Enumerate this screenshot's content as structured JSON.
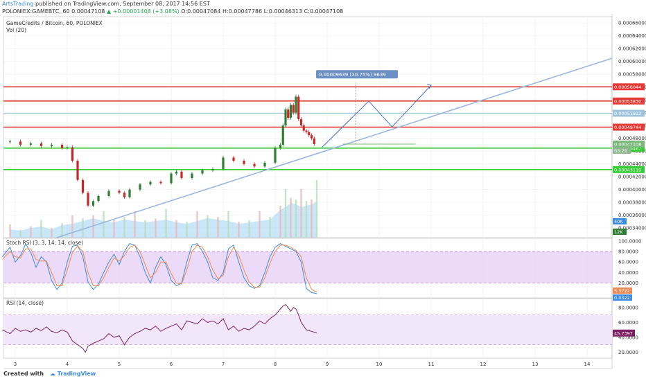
{
  "header": {
    "author": "ArtsTrading",
    "published_text": "published on TradingView.com, September 08, 2017 14:56 EST",
    "symbol_line_start": "POLONIEX:GAMEBTC, 60  0.00047108 ",
    "up_arrow": "▲",
    "change": "+0.00001408 (+3.08%)",
    "ohlc": "O:0.00047084  H:0.00047786  L:0.00046313  C:0.00047108"
  },
  "footer": {
    "created_with": "Created with",
    "logo": "TradingView",
    "cloud_icon": "cloud-icon"
  },
  "colors": {
    "red_level": "#e53935",
    "green_level": "#33cc33",
    "trend": "#9ab6e0",
    "candle_up": "#2e7d32",
    "candle_down": "#c62828",
    "stoch_k": "#3d8be0",
    "stoch_d": "#f08a50",
    "rsi": "#7b1f62",
    "band_fill": "#e6d2f8",
    "volume": "#9fd3f5"
  },
  "chart_data": [
    {
      "type": "candlestick",
      "title": "GameCredits / Bitcoin, 60, POLONIEX",
      "volume_label": "Vol (20)",
      "x_ticks": [
        "3",
        "4",
        "5",
        "6",
        "7",
        "8",
        "9",
        "10",
        "11",
        "12",
        "13",
        "14"
      ],
      "y_ticks": [
        "0.00066000",
        "0.00064000",
        "0.00062000",
        "0.00060000",
        "0.00058000",
        "0.00056000",
        "0.00054000",
        "0.00052000",
        "0.00050000",
        "0.00048000",
        "0.00046000",
        "0.00044000",
        "0.00042000",
        "0.00040000",
        "0.00038000",
        "0.00036000",
        "0.00034000"
      ],
      "ylim": [
        0.000325,
        0.00067
      ],
      "levels": [
        {
          "value": 0.00056044,
          "label": "0.00056044",
          "kind": "resistance"
        },
        {
          "value": 0.0005383,
          "label": "0.00053830",
          "kind": "resistance"
        },
        {
          "value": 0.00051912,
          "label": "0.00051912",
          "kind": "info"
        },
        {
          "value": 0.00049744,
          "label": "0.00049744",
          "kind": "resistance"
        },
        {
          "value": 0.00046467,
          "label": "0.00046467",
          "kind": "support"
        },
        {
          "value": 0.00043119,
          "label": "0.00043119",
          "kind": "support"
        }
      ],
      "last_price_label": "0.00047108",
      "last_price": 0.00047108,
      "countdown_label": "03:25",
      "measure_label": "0.00009639 (20.75%) 9639",
      "volume_axis_labels": [
        "40K",
        "12K"
      ],
      "series": [
        {
          "x": [
            2.9,
            3.1,
            3.3,
            3.5,
            3.7,
            3.9,
            4.0,
            4.1,
            4.2,
            4.3,
            4.4,
            4.5,
            4.6,
            4.8,
            5.0,
            5.1,
            5.2,
            5.4,
            5.6,
            5.8,
            6.0,
            6.1,
            6.2,
            6.4,
            6.6,
            6.8,
            7.0,
            7.2,
            7.4,
            7.6,
            7.8,
            8.0,
            8.1,
            8.15,
            8.2,
            8.25,
            8.3,
            8.35,
            8.4,
            8.45,
            8.5,
            8.55,
            8.6,
            8.65,
            8.7,
            8.75
          ],
          "y": [
            0.000475,
            0.00047,
            0.000472,
            0.000468,
            0.00047,
            0.000465,
            0.000466,
            0.000445,
            0.000415,
            0.000395,
            0.000375,
            0.000382,
            0.00039,
            0.000398,
            0.000395,
            0.000388,
            0.0004,
            0.000408,
            0.000412,
            0.00041,
            0.000425,
            0.000428,
            0.000418,
            0.000425,
            0.00043,
            0.000432,
            0.00045,
            0.000445,
            0.00044,
            0.000436,
            0.000442,
            0.000465,
            0.00047,
            0.0005,
            0.000525,
            0.000512,
            0.000532,
            0.00052,
            0.000545,
            0.00051,
            0.0005,
            0.000492,
            0.00049,
            0.000485,
            0.00048,
            0.000471
          ]
        }
      ],
      "volume": {
        "x": [
          2.9,
          3.1,
          3.3,
          3.5,
          3.7,
          3.9,
          4.1,
          4.3,
          4.5,
          4.7,
          4.9,
          5.1,
          5.3,
          5.5,
          5.7,
          5.9,
          6.1,
          6.3,
          6.5,
          6.7,
          6.9,
          7.1,
          7.3,
          7.5,
          7.7,
          7.9,
          8.1,
          8.2,
          8.3,
          8.4,
          8.5,
          8.6,
          8.7,
          8.8
        ],
        "y": [
          6,
          5,
          7,
          8,
          6,
          9,
          10,
          12,
          14,
          12,
          11,
          13,
          12,
          11,
          12,
          13,
          11,
          10,
          12,
          14,
          13,
          12,
          10,
          11,
          12,
          13,
          20,
          22,
          25,
          24,
          22,
          23,
          24,
          26
        ]
      }
    },
    {
      "type": "line",
      "title": "Stoch RSI (3, 3, 14, 14, close)",
      "y_ticks": [
        "100.0000",
        "80.0000",
        "60.0000",
        "40.0000",
        "20.0000"
      ],
      "ylim": [
        -8,
        105
      ],
      "band": [
        20,
        80
      ],
      "last_labels": [
        "3.3722",
        "0.0322"
      ],
      "series": [
        {
          "name": "%K",
          "x": [
            2.75,
            2.9,
            3.0,
            3.1,
            3.2,
            3.3,
            3.4,
            3.5,
            3.6,
            3.7,
            3.8,
            3.9,
            4.0,
            4.1,
            4.2,
            4.3,
            4.4,
            4.5,
            4.6,
            4.7,
            4.8,
            4.9,
            5.0,
            5.1,
            5.2,
            5.3,
            5.4,
            5.5,
            5.6,
            5.7,
            5.8,
            5.9,
            6.0,
            6.1,
            6.2,
            6.3,
            6.4,
            6.5,
            6.6,
            6.7,
            6.8,
            6.9,
            7.0,
            7.1,
            7.2,
            7.3,
            7.4,
            7.5,
            7.6,
            7.7,
            7.8,
            7.9,
            8.0,
            8.1,
            8.2,
            8.3,
            8.4,
            8.5,
            8.6,
            8.7,
            8.8
          ],
          "y": [
            70,
            88,
            60,
            72,
            94,
            78,
            50,
            70,
            60,
            25,
            8,
            20,
            60,
            90,
            92,
            70,
            22,
            8,
            18,
            40,
            60,
            75,
            55,
            80,
            95,
            92,
            70,
            40,
            20,
            50,
            70,
            55,
            25,
            15,
            20,
            60,
            92,
            95,
            80,
            60,
            30,
            25,
            40,
            85,
            92,
            60,
            30,
            15,
            10,
            15,
            40,
            70,
            88,
            95,
            90,
            85,
            80,
            60,
            10,
            2,
            0
          ]
        },
        {
          "name": "%D",
          "x": [
            2.75,
            2.9,
            3.0,
            3.1,
            3.2,
            3.3,
            3.4,
            3.5,
            3.6,
            3.7,
            3.8,
            3.9,
            4.0,
            4.1,
            4.2,
            4.3,
            4.4,
            4.5,
            4.6,
            4.7,
            4.8,
            4.9,
            5.0,
            5.1,
            5.2,
            5.3,
            5.4,
            5.5,
            5.6,
            5.7,
            5.8,
            5.9,
            6.0,
            6.1,
            6.2,
            6.3,
            6.4,
            6.5,
            6.6,
            6.7,
            6.8,
            6.9,
            7.0,
            7.1,
            7.2,
            7.3,
            7.4,
            7.5,
            7.6,
            7.7,
            7.8,
            7.9,
            8.0,
            8.1,
            8.2,
            8.3,
            8.4,
            8.5,
            8.6,
            8.7,
            8.8
          ],
          "y": [
            65,
            80,
            70,
            68,
            85,
            85,
            65,
            62,
            62,
            40,
            15,
            15,
            45,
            78,
            90,
            80,
            40,
            15,
            15,
            30,
            50,
            68,
            62,
            72,
            88,
            92,
            80,
            55,
            30,
            40,
            60,
            60,
            38,
            20,
            18,
            45,
            80,
            92,
            88,
            70,
            45,
            28,
            35,
            70,
            88,
            72,
            45,
            22,
            12,
            12,
            30,
            58,
            80,
            92,
            92,
            88,
            82,
            70,
            30,
            8,
            3
          ]
        }
      ]
    },
    {
      "type": "line",
      "title": "RSI (14, close)",
      "y_ticks": [
        "80.0000",
        "60.0000",
        "40.0000",
        "20.0000"
      ],
      "ylim": [
        12,
        92
      ],
      "band": [
        30,
        70
      ],
      "last_label": "45.7397",
      "series": [
        {
          "name": "RSI",
          "x": [
            2.75,
            2.9,
            3.0,
            3.1,
            3.2,
            3.3,
            3.4,
            3.5,
            3.6,
            3.7,
            3.8,
            3.9,
            4.0,
            4.1,
            4.2,
            4.3,
            4.35,
            4.4,
            4.5,
            4.6,
            4.7,
            4.8,
            4.9,
            5.0,
            5.1,
            5.2,
            5.3,
            5.4,
            5.5,
            5.6,
            5.7,
            5.8,
            5.9,
            6.0,
            6.1,
            6.2,
            6.3,
            6.4,
            6.5,
            6.6,
            6.7,
            6.8,
            6.9,
            7.0,
            7.1,
            7.2,
            7.3,
            7.4,
            7.5,
            7.6,
            7.7,
            7.8,
            7.9,
            8.0,
            8.1,
            8.15,
            8.2,
            8.3,
            8.35,
            8.4,
            8.45,
            8.5,
            8.6,
            8.7,
            8.8
          ],
          "y": [
            50,
            45,
            52,
            48,
            50,
            47,
            52,
            49,
            54,
            48,
            46,
            50,
            47,
            35,
            30,
            25,
            20,
            28,
            32,
            35,
            38,
            45,
            40,
            42,
            30,
            40,
            45,
            48,
            52,
            50,
            55,
            48,
            52,
            55,
            58,
            50,
            62,
            60,
            58,
            65,
            60,
            62,
            58,
            65,
            50,
            55,
            48,
            52,
            50,
            55,
            62,
            58,
            65,
            70,
            78,
            82,
            84,
            75,
            80,
            78,
            70,
            60,
            50,
            48,
            45.7
          ]
        }
      ]
    }
  ]
}
